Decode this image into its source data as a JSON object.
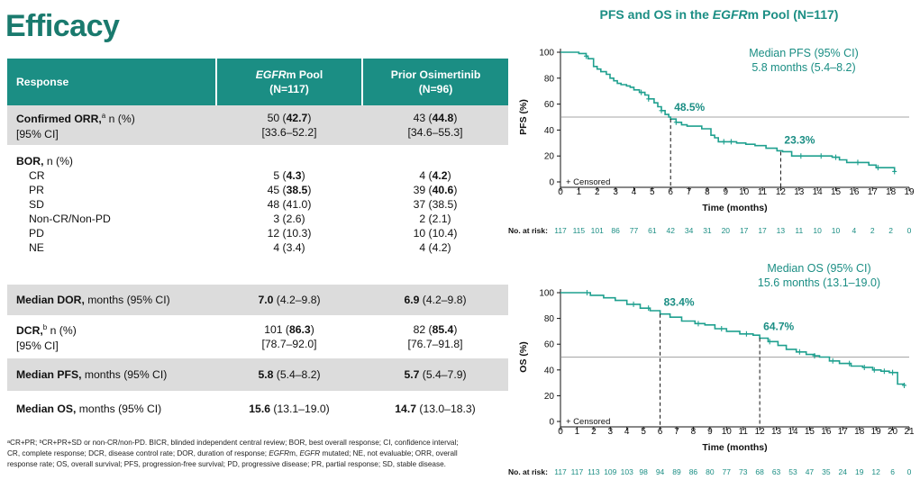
{
  "page_title": "Efficacy",
  "table": {
    "headers": {
      "response": "Response",
      "col1_line1_italic": "EGFR",
      "col1_line1_rest": "m Pool",
      "col1_line2": "(N=117)",
      "col2_line1": "Prior Osimertinib",
      "col2_line2": "(N=96)"
    },
    "orr": {
      "label_bold": "Confirmed ORR,",
      "label_sup": "a",
      "label_rest": " n (%)",
      "ci_label": "[95% CI]",
      "col1_n": "50 (",
      "col1_pct": "42.7",
      "col1_close": ")",
      "col1_ci": "[33.6–52.2]",
      "col2_n": "43 (",
      "col2_pct": "44.8",
      "col2_close": ")",
      "col2_ci": "[34.6–55.3]"
    },
    "bor": {
      "label_bold": "BOR,",
      "label_rest": " n (%)",
      "rows": [
        {
          "label": "CR",
          "c1_pre": "5 (",
          "c1_bold": "4.3",
          "c1_post": ")",
          "c2_pre": "4 (",
          "c2_bold": "4.2",
          "c2_post": ")"
        },
        {
          "label": "PR",
          "c1_pre": "45 (",
          "c1_bold": "38.5",
          "c1_post": ")",
          "c2_pre": "39 (",
          "c2_bold": "40.6",
          "c2_post": ")"
        },
        {
          "label": "SD",
          "c1_pre": "48 (41.0)",
          "c1_bold": "",
          "c1_post": "",
          "c2_pre": "37 (38.5)",
          "c2_bold": "",
          "c2_post": ""
        },
        {
          "label": "Non-CR/Non-PD",
          "c1_pre": "3 (2.6)",
          "c1_bold": "",
          "c1_post": "",
          "c2_pre": "2 (2.1)",
          "c2_bold": "",
          "c2_post": ""
        },
        {
          "label": "PD",
          "c1_pre": "12 (10.3)",
          "c1_bold": "",
          "c1_post": "",
          "c2_pre": "10 (10.4)",
          "c2_bold": "",
          "c2_post": ""
        },
        {
          "label": "NE",
          "c1_pre": "4 (3.4)",
          "c1_bold": "",
          "c1_post": "",
          "c2_pre": "4 (4.2)",
          "c2_bold": "",
          "c2_post": ""
        }
      ]
    },
    "dor": {
      "label_bold": "Median DOR,",
      "label_rest": " months (95% CI)",
      "col1_bold": "7.0",
      "col1_rest": " (4.2–9.8)",
      "col2_bold": "6.9",
      "col2_rest": " (4.2–9.8)"
    },
    "dcr": {
      "label_bold": "DCR,",
      "label_sup": "b",
      "label_rest": " n (%)",
      "ci_label": "[95% CI]",
      "col1_n": "101 (",
      "col1_pct": "86.3",
      "col1_close": ")",
      "col1_ci": "[78.7–92.0]",
      "col2_n": "82 (",
      "col2_pct": "85.4",
      "col2_close": ")",
      "col2_ci": "[76.7–91.8]"
    },
    "pfs": {
      "label_bold": "Median PFS,",
      "label_rest": " months (95% CI)",
      "col1_bold": "5.8",
      "col1_rest": " (5.4–8.2)",
      "col2_bold": "5.7",
      "col2_rest": " (5.4–7.9)"
    },
    "os": {
      "label_bold": "Median OS,",
      "label_rest": " months (95% CI)",
      "col1_bold": "15.6",
      "col1_rest": " (13.1–19.0)",
      "col2_bold": "14.7",
      "col2_rest": " (13.0–18.3)"
    }
  },
  "footnote": {
    "line1": "ᵃCR+PR; ᵇCR+PR+SD or non-CR/non-PD. BICR, blinded independent central review; BOR, best overall response; CI, confidence interval;",
    "line2_pre": "CR, complete response; DCR, disease control rate; DOR, duration of response; ",
    "line2_ital1": "EGFR",
    "line2_mid": "m, ",
    "line2_ital2": "EGFR",
    "line2_post": " mutated; NE, not evaluable; ORR, overall",
    "line3": "response rate; OS, overall survival; PFS, progression-free survival; PD, progressive disease; PR, partial response; SD, stable disease."
  },
  "chart_title": {
    "pre": "PFS and OS in the ",
    "ital": "EGFR",
    "post": "m Pool (N=117)"
  },
  "colors": {
    "teal": "#1b8e84",
    "header_bg": "#1b8e84",
    "title": "#1a7a6e",
    "shade": "#dcdcdc",
    "km_line": "#1fa08f"
  },
  "chart_data": [
    {
      "type": "line",
      "title": "",
      "ylabel": "PFS (%)",
      "xlabel": "Time (months)",
      "xlim": [
        0,
        19
      ],
      "ylim": [
        0,
        100
      ],
      "xticks": [
        0,
        1,
        2,
        3,
        4,
        5,
        6,
        7,
        8,
        9,
        10,
        11,
        12,
        13,
        14,
        15,
        16,
        17,
        18,
        19
      ],
      "yticks": [
        0,
        20,
        40,
        60,
        80,
        100
      ],
      "legend_text": "+ Censored",
      "median_text_line1": "Median PFS (95% CI)",
      "median_text_line2": "5.8 months (5.4–8.2)",
      "markers": [
        {
          "x": 6,
          "y": 48.5,
          "label": "48.5%"
        },
        {
          "x": 12,
          "y": 23.3,
          "label": "23.3%"
        }
      ],
      "reference_y": 50,
      "curve_x": [
        0,
        0.5,
        1.0,
        1.4,
        1.5,
        1.8,
        2.0,
        2.2,
        2.5,
        2.7,
        2.9,
        3.1,
        3.3,
        3.6,
        3.8,
        4.0,
        4.3,
        4.6,
        4.8,
        5.1,
        5.3,
        5.5,
        5.7,
        5.9,
        6.0,
        6.3,
        6.6,
        6.9,
        7.2,
        7.7,
        8.2,
        8.4,
        8.6,
        9.2,
        9.6,
        10.1,
        10.6,
        11.2,
        11.8,
        12.1,
        12.6,
        13.2,
        14.0,
        14.8,
        15.2,
        15.6,
        16.8,
        17.2,
        18.2
      ],
      "curve_y": [
        100,
        100,
        99,
        97,
        95,
        89,
        87,
        85,
        83,
        80,
        78,
        76,
        75,
        74,
        73,
        71,
        69,
        67,
        64,
        61,
        58,
        55,
        52,
        50,
        48.5,
        46,
        44,
        43,
        43,
        41,
        36,
        34,
        31,
        31,
        30,
        29,
        28,
        26,
        24,
        23.3,
        20,
        20,
        20,
        19,
        17,
        15,
        13,
        11,
        8
      ],
      "censor_x": [
        1.4,
        4.4,
        4.8,
        5.5,
        6.3,
        8.9,
        9.3,
        13.1,
        14.2,
        15.0,
        16.2,
        17.3,
        18.2
      ],
      "risk_label": "No. at risk:",
      "at_risk": [
        "117",
        "115",
        "101",
        "86",
        "77",
        "61",
        "42",
        "34",
        "31",
        "20",
        "17",
        "17",
        "13",
        "11",
        "10",
        "10",
        "4",
        "2",
        "2",
        "0"
      ]
    },
    {
      "type": "line",
      "title": "",
      "ylabel": "OS (%)",
      "xlabel": "Time (months)",
      "xlim": [
        0,
        21
      ],
      "ylim": [
        0,
        100
      ],
      "xticks": [
        0,
        1,
        2,
        3,
        4,
        5,
        6,
        7,
        8,
        9,
        10,
        11,
        12,
        13,
        14,
        15,
        16,
        17,
        18,
        19,
        20,
        21
      ],
      "yticks": [
        0,
        20,
        40,
        60,
        80,
        100
      ],
      "legend_text": "+ Censored",
      "median_text_line1": "Median OS (95% CI)",
      "median_text_line2": "15.6 months (13.1–19.0)",
      "markers": [
        {
          "x": 6,
          "y": 83.4,
          "label": "83.4%"
        },
        {
          "x": 12,
          "y": 64.7,
          "label": "64.7%"
        }
      ],
      "reference_y": 50,
      "curve_x": [
        0,
        1.0,
        1.8,
        2.6,
        3.3,
        4.0,
        4.8,
        5.4,
        6.0,
        6.6,
        7.3,
        8.1,
        8.7,
        9.3,
        10.0,
        10.8,
        11.6,
        12.0,
        12.5,
        13.1,
        13.6,
        14.2,
        14.8,
        15.3,
        15.6,
        16.2,
        16.8,
        17.5,
        18.2,
        18.8,
        19.3,
        19.8,
        20.2,
        20.3,
        20.7
      ],
      "curve_y": [
        100,
        100,
        98,
        96,
        94,
        91,
        88,
        86,
        83.4,
        81,
        78,
        76,
        75,
        72,
        70,
        68,
        67,
        64.7,
        62,
        59,
        56,
        54,
        52,
        51,
        50,
        47,
        45,
        43,
        42,
        40,
        39,
        38,
        38,
        29,
        28
      ],
      "censor_x": [
        1.6,
        4.4,
        5.3,
        8.3,
        9.7,
        11.2,
        12.6,
        14.4,
        15.3,
        16.4,
        17.4,
        18.3,
        18.9,
        19.5,
        20.0,
        20.7
      ],
      "risk_label": "No. at risk:",
      "at_risk": [
        "117",
        "117",
        "113",
        "109",
        "103",
        "98",
        "94",
        "89",
        "86",
        "80",
        "77",
        "73",
        "68",
        "63",
        "53",
        "47",
        "35",
        "24",
        "19",
        "12",
        "6",
        "0"
      ]
    }
  ]
}
